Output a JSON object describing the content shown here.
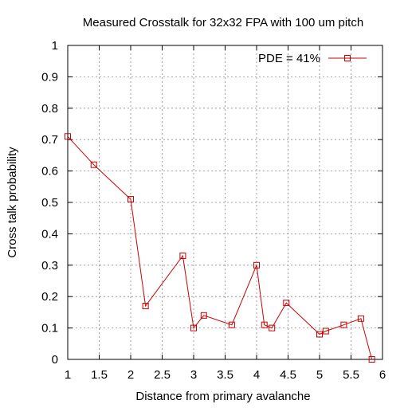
{
  "chart_data": {
    "type": "line",
    "title": "Measured Crosstalk for 32x32 FPA with 100 um pitch",
    "xlabel": "Distance from primary avalanche",
    "ylabel": "Cross talk probability",
    "xlim": [
      1,
      6
    ],
    "ylim": [
      0,
      1
    ],
    "x_ticks": [
      "1",
      "1.5",
      "2",
      "2.5",
      "3",
      "3.5",
      "4",
      "4.5",
      "5",
      "5.5",
      "6"
    ],
    "y_ticks": [
      "0",
      "0.1",
      "0.2",
      "0.3",
      "0.4",
      "0.5",
      "0.6",
      "0.7",
      "0.8",
      "0.9",
      "1"
    ],
    "grid": true,
    "legend_position": "top-right",
    "series": [
      {
        "name": "PDE = 41%",
        "color": "#cc0000",
        "marker": "square",
        "x": [
          1,
          1.414,
          2,
          2.236,
          2.828,
          3,
          3.162,
          3.606,
          4,
          4.123,
          4.243,
          4.472,
          5,
          5.099,
          5.385,
          5.657,
          5.831
        ],
        "y": [
          0.71,
          0.62,
          0.51,
          0.17,
          0.33,
          0.1,
          0.14,
          0.11,
          0.3,
          0.11,
          0.1,
          0.18,
          0.08,
          0.09,
          0.11,
          0.13,
          0.0
        ]
      }
    ]
  }
}
